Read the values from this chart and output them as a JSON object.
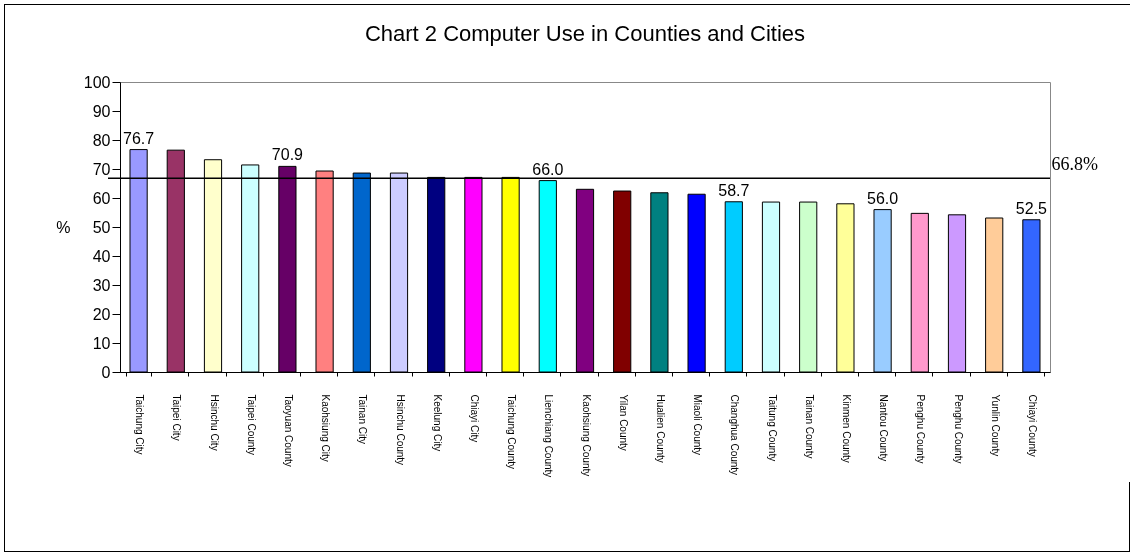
{
  "chart_data": {
    "type": "bar",
    "title": "Chart 2     Computer Use in Counties and Cities",
    "ylabel": "%",
    "categories": [
      "Taichung City",
      "Taipei City",
      "Hsinchu City",
      "Taipei County",
      "Taoyuan County",
      "Kaohsiung City",
      "Tainan City",
      "Hsinchu County",
      "Keelung City",
      "Chiayi City",
      "Taichung County",
      "Lienchiang County",
      "Kaohsiung County",
      "Yilan County",
      "Hualien County",
      "Miaoli County",
      "Changhua County",
      "Taitung County",
      "Tainan County",
      "Kinmen County",
      "Nantou County",
      "Penghu County",
      "Penghu County",
      "Yunlin County",
      "Chiayi County"
    ],
    "values": [
      76.7,
      76.5,
      73.2,
      71.4,
      70.9,
      69.3,
      68.6,
      68.6,
      67.1,
      67.1,
      67.1,
      66.0,
      63.0,
      62.4,
      61.8,
      61.3,
      58.7,
      58.6,
      58.6,
      58.0,
      56.0,
      54.7,
      54.2,
      53.1,
      52.5
    ],
    "value_labels": [
      "76.7",
      null,
      null,
      null,
      "70.9",
      null,
      null,
      null,
      null,
      null,
      null,
      "66.0",
      null,
      null,
      null,
      null,
      "58.7",
      null,
      null,
      null,
      "56.0",
      null,
      null,
      null,
      "52.5"
    ],
    "colors": [
      "#9999ff",
      "#993366",
      "#ffffcc",
      "#ccffff",
      "#660066",
      "#ff8080",
      "#0066cc",
      "#ccccff",
      "#000080",
      "#ff00ff",
      "#ffff00",
      "#00ffff",
      "#800080",
      "#800000",
      "#008080",
      "#0000ff",
      "#00ccff",
      "#ccffff",
      "#ccffcc",
      "#ffff99",
      "#99ccff",
      "#ff99cc",
      "#cc99ff",
      "#ffcc99",
      "#3366ff"
    ],
    "ylim": [
      0,
      100
    ],
    "yticks": [
      0,
      10,
      20,
      30,
      40,
      50,
      60,
      70,
      80,
      90,
      100
    ],
    "grid": false,
    "ref_lines": [
      {
        "axis": "y",
        "value": 66.8,
        "label": "66.8%"
      }
    ]
  }
}
